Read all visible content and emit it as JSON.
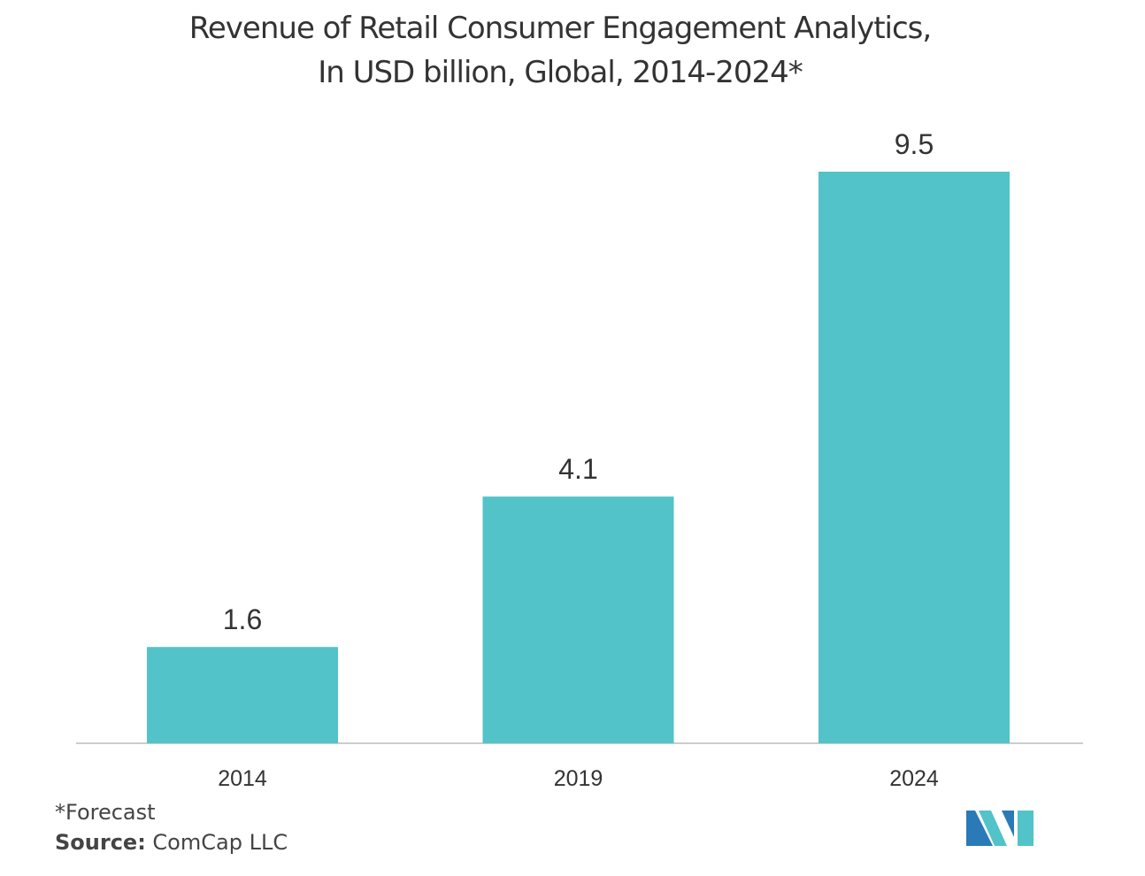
{
  "chart_data": {
    "type": "bar",
    "title": "Revenue of  Retail Consumer Engagement Analytics,",
    "subtitle": "In USD billion, Global, 2014-2024*",
    "categories": [
      "2014",
      "2019",
      "2024"
    ],
    "values": [
      1.6,
      4.1,
      9.5
    ],
    "data_labels": [
      "1.6",
      "4.1",
      "9.5"
    ],
    "ylim": [
      0,
      10
    ],
    "grid": false,
    "bar_color": "#52c3c9",
    "axis_color": "#cccccc"
  },
  "footnote": "*Forecast",
  "source": {
    "label": "Source:",
    "text": " ComCap LLC"
  },
  "logo": {
    "icon": "mordor-intelligence-logo",
    "colors": [
      "#2a7ab8",
      "#52c3c9"
    ]
  }
}
